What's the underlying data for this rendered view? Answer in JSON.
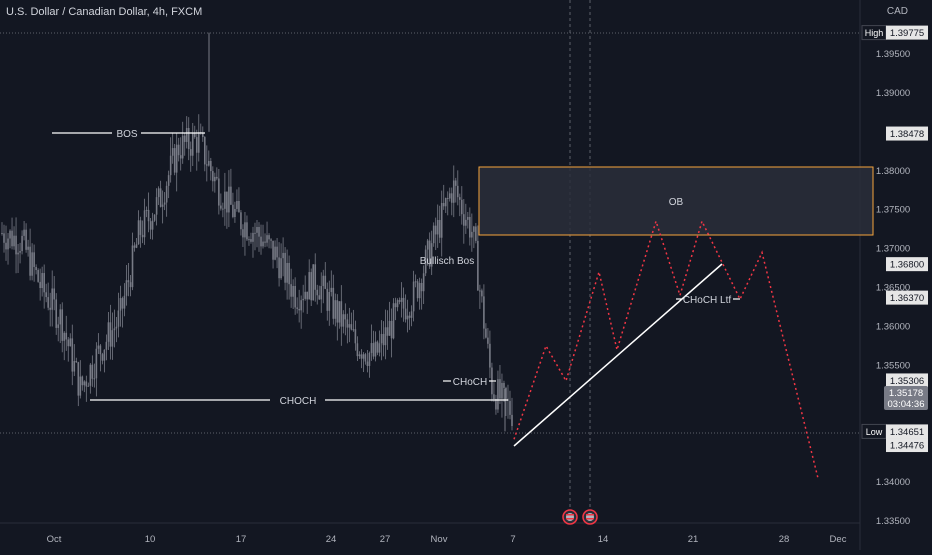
{
  "header": {
    "title": "U.S. Dollar / Canadian Dollar, 4h, FXCM"
  },
  "price_axis": {
    "currency": "CAD",
    "ticks": [
      "1.39500",
      "1.39000",
      "1.38000",
      "1.37500",
      "1.37000",
      "1.36500",
      "1.36000",
      "1.35500",
      "1.34000",
      "1.33500"
    ],
    "tick_values": [
      1.395,
      1.39,
      1.38,
      1.375,
      1.37,
      1.365,
      1.36,
      1.355,
      1.34,
      1.335
    ],
    "badges": [
      {
        "label": "High",
        "value": "1.39775",
        "price": 1.39775
      },
      {
        "label": "",
        "value": "1.38478",
        "price": 1.38478
      },
      {
        "label": "",
        "value": "1.36800",
        "price": 1.368
      },
      {
        "label": "",
        "value": "1.36370",
        "price": 1.3637
      },
      {
        "label": "",
        "value": "1.35306",
        "price": 1.35306
      },
      {
        "label": "Low",
        "value": "1.34651",
        "price": 1.34651
      },
      {
        "label": "",
        "value": "1.34476",
        "price": 1.34476
      }
    ],
    "current": {
      "value": "1.35178",
      "countdown": "03:04:36",
      "price": 1.35178
    }
  },
  "time_axis": {
    "labels": [
      "Oct",
      "10",
      "17",
      "24",
      "27",
      "Nov",
      "7",
      "14",
      "21",
      "28",
      "Dec"
    ]
  },
  "annotations": {
    "bos": "BOS",
    "choch": "CHOCH",
    "bullish_bos": "Bullisch Bos",
    "choch_small": "CHoCH",
    "choch_ltf": "CHoCH Ltf",
    "ob": "OB"
  },
  "colors": {
    "background": "#131722",
    "candle": "#787b86",
    "projection": "#f23645",
    "trendline": "#ffffff",
    "ob_border": "#f7a43c",
    "ob_fill": "#2a2e39"
  },
  "chart_data": {
    "type": "candlestick",
    "symbol": "U.S. Dollar / Canadian Dollar",
    "timeframe": "4h",
    "source": "FXCM",
    "y_range": [
      1.3335,
      1.3995
    ],
    "session_high": 1.39775,
    "session_low": 1.34651,
    "last_price": 1.35178,
    "ob_zone": [
      1.3722,
      1.3805
    ],
    "close_path": [
      [
        "Oct",
        1.372
      ],
      [
        "Oct 3",
        1.371
      ],
      [
        "Oct 4",
        1.365
      ],
      [
        "Oct 5",
        1.361
      ],
      [
        "Oct 6",
        1.352
      ],
      [
        "Oct 9",
        1.357
      ],
      [
        "Oct 10",
        1.361
      ],
      [
        "Oct 11",
        1.372
      ],
      [
        "Oct 12",
        1.376
      ],
      [
        "Oct 13",
        1.383
      ],
      [
        "Oct 16",
        1.384
      ],
      [
        "Oct 17",
        1.378
      ],
      [
        "Oct 18",
        1.374
      ],
      [
        "Oct 19",
        1.372
      ],
      [
        "Oct 20",
        1.369
      ],
      [
        "Oct 23",
        1.364
      ],
      [
        "Oct 24",
        1.366
      ],
      [
        "Oct 25",
        1.362
      ],
      [
        "Oct 26",
        1.358
      ],
      [
        "Oct 27",
        1.356
      ],
      [
        "Oct 30",
        1.361
      ],
      [
        "Oct 31",
        1.364
      ],
      [
        "Nov 1",
        1.371
      ],
      [
        "Nov 2",
        1.378
      ],
      [
        "Nov 3",
        1.372
      ],
      [
        "Nov 6",
        1.352
      ],
      [
        "Nov 7",
        1.349
      ]
    ],
    "projection_path": [
      [
        "Nov 7",
        1.3455
      ],
      [
        "Nov 9",
        1.3575
      ],
      [
        "Nov 12",
        1.353
      ],
      [
        "Nov 15",
        1.367
      ],
      [
        "Nov 17",
        1.357
      ],
      [
        "Nov 20",
        1.3735
      ],
      [
        "Nov 22",
        1.364
      ],
      [
        "Nov 23",
        1.3735
      ],
      [
        "Nov 25",
        1.3635
      ],
      [
        "Nov 26",
        1.3695
      ],
      [
        "Nov 30",
        1.3405
      ]
    ]
  }
}
